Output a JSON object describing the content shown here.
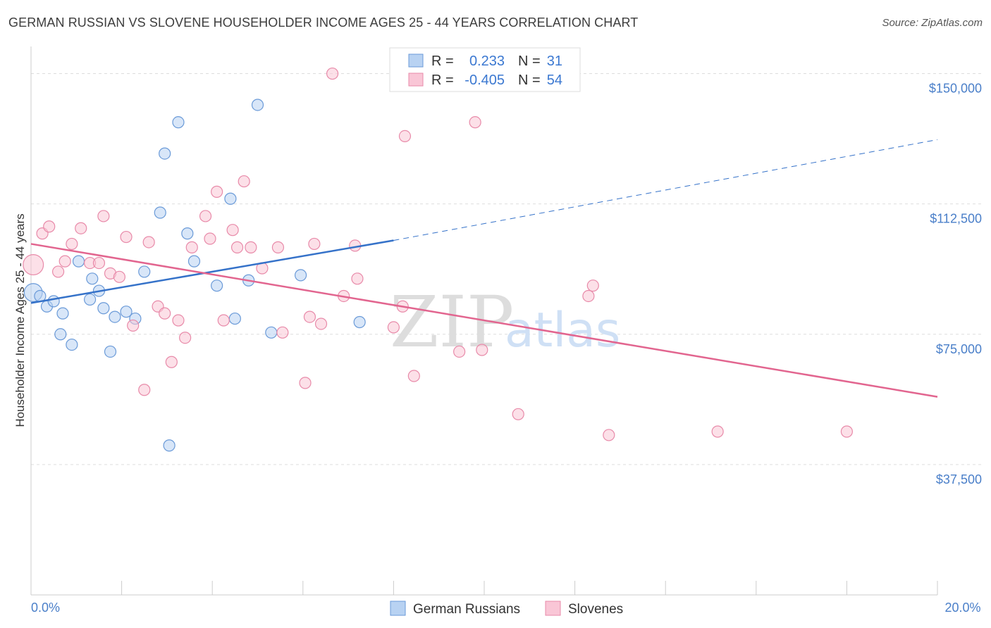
{
  "title": "GERMAN RUSSIAN VS SLOVENE HOUSEHOLDER INCOME AGES 25 - 44 YEARS CORRELATION CHART",
  "source": "Source: ZipAtlas.com",
  "watermark": {
    "zip": "ZIP",
    "atlas": "atlas"
  },
  "colors": {
    "blue_fill": "#b8d2f2",
    "blue_stroke": "#6a9ad8",
    "blue_line": "#3572c9",
    "pink_fill": "#f9c6d6",
    "pink_stroke": "#e88aa9",
    "pink_line": "#e2658f",
    "grid": "#dddddd",
    "axis_label": "#4a7fc9"
  },
  "legend": {
    "r_label": "R =",
    "n_label": "N =",
    "rows": [
      {
        "series": "German Russians",
        "r": "0.233",
        "n": "31"
      },
      {
        "series": "Slovenes",
        "r": "-0.405",
        "n": "54"
      }
    ]
  },
  "chart_data": {
    "type": "scatter",
    "ylabel": "Householder Income Ages 25 - 44 years",
    "xlim": [
      0,
      20
    ],
    "ylim": [
      0,
      157000
    ],
    "x_tick_labels": {
      "min": "0.0%",
      "max": "20.0%"
    },
    "y_ticks": [
      {
        "value": 150000,
        "label": "$150,000"
      },
      {
        "value": 112500,
        "label": "$112,500"
      },
      {
        "value": 75000,
        "label": "$75,000"
      },
      {
        "value": 37500,
        "label": "$37,500"
      }
    ],
    "grid": "horizontal-dashed",
    "legend_position": "top-center",
    "series": [
      {
        "name": "German Russians",
        "color": "blue",
        "trend": {
          "x0": 0,
          "y0": 84000,
          "x1": 8,
          "y1": 102000,
          "x_dash_end": 20,
          "y_dash_end": 131000
        },
        "points": [
          [
            0.05,
            87000,
            1.6
          ],
          [
            0.2,
            86000,
            1
          ],
          [
            0.35,
            83000,
            1
          ],
          [
            0.5,
            84500,
            1
          ],
          [
            0.7,
            81000,
            1
          ],
          [
            0.65,
            75000,
            1
          ],
          [
            0.9,
            72000,
            1
          ],
          [
            1.05,
            96000,
            1
          ],
          [
            1.3,
            85000,
            1
          ],
          [
            1.35,
            91000,
            1
          ],
          [
            1.5,
            87500,
            1
          ],
          [
            1.6,
            82500,
            1
          ],
          [
            1.75,
            70000,
            1
          ],
          [
            1.85,
            80000,
            1
          ],
          [
            2.1,
            81500,
            1
          ],
          [
            2.3,
            79500,
            1
          ],
          [
            2.5,
            93000,
            1
          ],
          [
            2.85,
            110000,
            1
          ],
          [
            2.95,
            127000,
            1
          ],
          [
            3.05,
            43000,
            1
          ],
          [
            3.25,
            136000,
            1
          ],
          [
            3.45,
            104000,
            1
          ],
          [
            3.6,
            96000,
            1
          ],
          [
            4.1,
            89000,
            1
          ],
          [
            4.4,
            114000,
            1
          ],
          [
            4.5,
            79500,
            1
          ],
          [
            4.8,
            90500,
            1
          ],
          [
            5.0,
            141000,
            1
          ],
          [
            5.3,
            75500,
            1
          ],
          [
            5.95,
            92000,
            1
          ],
          [
            7.25,
            78500,
            1
          ]
        ]
      },
      {
        "name": "Slovenes",
        "color": "pink",
        "trend": {
          "x0": 0,
          "y0": 101000,
          "x1": 20,
          "y1": 57000
        },
        "points": [
          [
            0.05,
            95000,
            1.8
          ],
          [
            0.25,
            104000,
            1
          ],
          [
            0.4,
            106000,
            1
          ],
          [
            0.6,
            93000,
            1
          ],
          [
            0.75,
            96000,
            1
          ],
          [
            0.9,
            101000,
            1
          ],
          [
            1.1,
            105500,
            1
          ],
          [
            1.3,
            95500,
            1
          ],
          [
            1.5,
            95500,
            1
          ],
          [
            1.6,
            109000,
            1
          ],
          [
            1.75,
            92500,
            1
          ],
          [
            1.95,
            91500,
            1
          ],
          [
            2.1,
            103000,
            1
          ],
          [
            2.25,
            77500,
            1
          ],
          [
            2.5,
            59000,
            1
          ],
          [
            2.6,
            101500,
            1
          ],
          [
            2.8,
            83000,
            1
          ],
          [
            2.95,
            81000,
            1
          ],
          [
            3.1,
            67000,
            1
          ],
          [
            3.25,
            79000,
            1
          ],
          [
            3.4,
            74000,
            1
          ],
          [
            3.55,
            100000,
            1
          ],
          [
            3.85,
            109000,
            1
          ],
          [
            3.95,
            102500,
            1
          ],
          [
            4.1,
            116000,
            1
          ],
          [
            4.25,
            79000,
            1
          ],
          [
            4.45,
            105000,
            1
          ],
          [
            4.55,
            100000,
            1
          ],
          [
            4.7,
            119000,
            1
          ],
          [
            4.85,
            100000,
            1
          ],
          [
            5.1,
            94000,
            1
          ],
          [
            5.45,
            100000,
            1
          ],
          [
            5.55,
            75500,
            1
          ],
          [
            6.05,
            61000,
            1
          ],
          [
            6.15,
            80000,
            1
          ],
          [
            6.25,
            101000,
            1
          ],
          [
            6.4,
            78000,
            1
          ],
          [
            6.65,
            150000,
            1
          ],
          [
            6.9,
            86000,
            1
          ],
          [
            7.15,
            100500,
            1
          ],
          [
            7.2,
            91000,
            1
          ],
          [
            8.0,
            77000,
            1
          ],
          [
            8.2,
            83000,
            1
          ],
          [
            8.25,
            132000,
            1
          ],
          [
            8.45,
            63000,
            1
          ],
          [
            9.45,
            70000,
            1
          ],
          [
            9.8,
            136000,
            1
          ],
          [
            9.95,
            70500,
            1
          ],
          [
            10.75,
            52000,
            1
          ],
          [
            12.3,
            86000,
            1
          ],
          [
            12.4,
            89000,
            1
          ],
          [
            12.75,
            46000,
            1
          ],
          [
            15.15,
            47000,
            1
          ],
          [
            18.0,
            47000,
            1
          ]
        ]
      }
    ]
  }
}
